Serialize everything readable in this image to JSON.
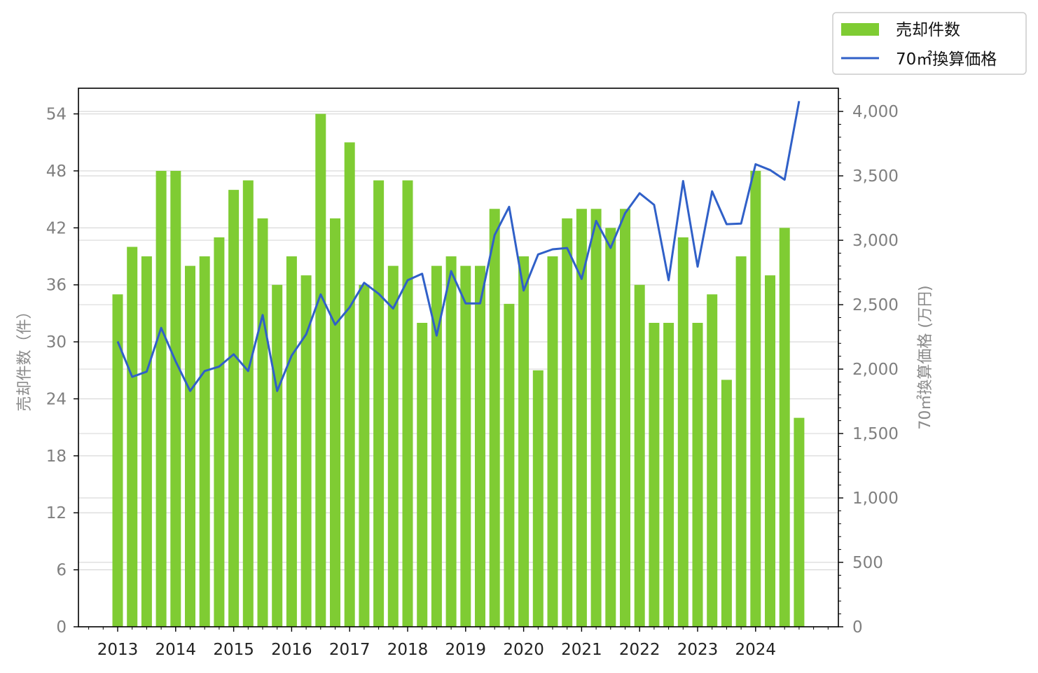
{
  "chart_data": {
    "type": "bar",
    "xlabel": "",
    "ylabel": "売却件数（件）",
    "y2label": "70㎡換算価格 (万円)",
    "ylim": [
      0,
      56.7
    ],
    "y2lim": [
      0,
      4180
    ],
    "yticks": [
      "0",
      "6",
      "12",
      "18",
      "24",
      "30",
      "36",
      "42",
      "48",
      "54"
    ],
    "y2ticks": [
      "0",
      "500",
      "1,000",
      "1,500",
      "2,000",
      "2,500",
      "3,000",
      "3,500",
      "4,000"
    ],
    "xticks": [
      "2013",
      "2014",
      "2015",
      "2016",
      "2017",
      "2018",
      "2019",
      "2020",
      "2021",
      "2022",
      "2023",
      "2024"
    ],
    "grid": true,
    "legend_position": "top-right, outside",
    "colors": {
      "bar": "#7fcc33",
      "line": "#3060c8",
      "grid": "#d9d9d9"
    },
    "series": [
      {
        "name": "売却件数",
        "type": "bar",
        "axis": "left",
        "values": [
          35,
          40,
          39,
          48,
          48,
          38,
          39,
          41,
          46,
          47,
          43,
          36,
          39,
          37,
          54,
          43,
          51,
          36,
          47,
          38,
          47,
          32,
          38,
          39,
          38,
          38,
          44,
          34,
          39,
          27,
          39,
          43,
          44,
          44,
          42,
          44,
          36,
          32,
          32,
          41,
          32,
          35,
          26,
          39,
          48,
          37,
          42,
          22
        ]
      },
      {
        "name": "70㎡換算価格",
        "type": "line",
        "axis": "right",
        "values": [
          2215,
          1940,
          1980,
          2320,
          2060,
          1830,
          1985,
          2020,
          2115,
          1985,
          2420,
          1830,
          2105,
          2270,
          2580,
          2345,
          2480,
          2670,
          2585,
          2470,
          2690,
          2740,
          2260,
          2760,
          2510,
          2510,
          3040,
          3260,
          2610,
          2890,
          2930,
          2940,
          2700,
          3150,
          2940,
          3210,
          3365,
          3275,
          2690,
          3460,
          2795,
          3380,
          3125,
          3130,
          3590,
          3545,
          3470,
          4080
        ]
      }
    ]
  }
}
